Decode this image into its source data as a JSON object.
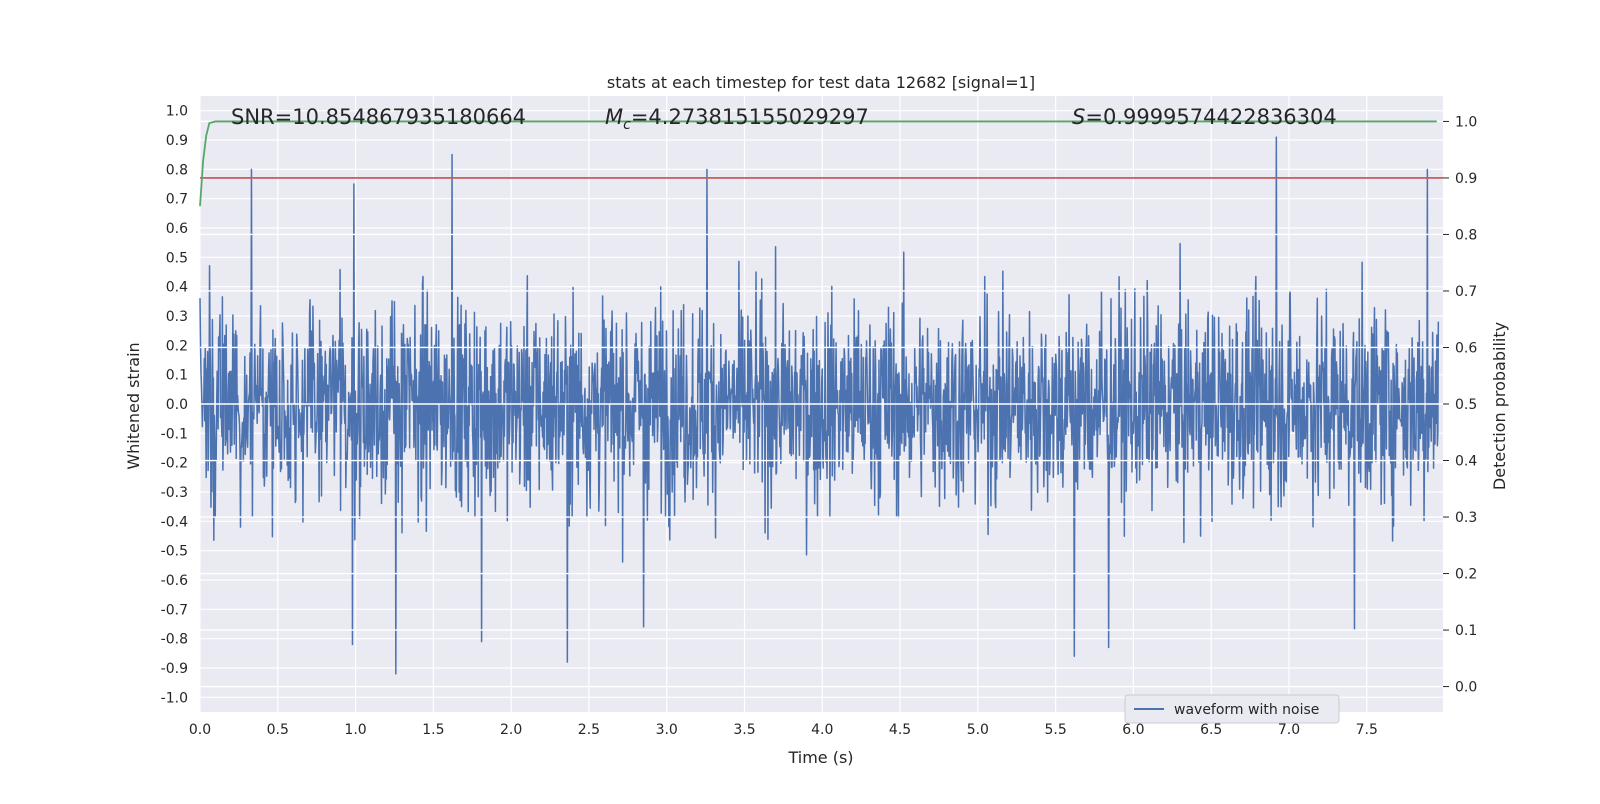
{
  "chart_data": {
    "type": "line",
    "title": "stats at each timestep for test data 12682 [signal=1]",
    "xlabel": "Time (s)",
    "ylabel_left": "Whitened strain",
    "ylabel_right": "Detection probability",
    "xlim": [
      0.0,
      7.99
    ],
    "ylim_left": [
      -1.05,
      1.05
    ],
    "ylim_right": [
      -0.045,
      1.045
    ],
    "x_ticks": [
      "0.0",
      "0.5",
      "1.0",
      "1.5",
      "2.0",
      "2.5",
      "3.0",
      "3.5",
      "4.0",
      "4.5",
      "5.0",
      "5.5",
      "6.0",
      "6.5",
      "7.0",
      "7.5"
    ],
    "y_ticks_left": [
      "1.0",
      "0.9",
      "0.8",
      "0.7",
      "0.6",
      "0.5",
      "0.4",
      "0.3",
      "0.2",
      "0.1",
      "0.0",
      "-0.1",
      "-0.2",
      "-0.3",
      "-0.4",
      "-0.5",
      "-0.6",
      "-0.7",
      "-0.8",
      "-0.9",
      "-1.0"
    ],
    "y_ticks_right": [
      "1.0",
      "0.9",
      "0.8",
      "0.7",
      "0.6",
      "0.5",
      "0.4",
      "0.3",
      "0.2",
      "0.1",
      "0.0"
    ],
    "annotations": {
      "snr": "SNR=10.854867935180664",
      "mc_symbol": "M",
      "mc_sub": "c",
      "mc_value": "=4.273815155029297",
      "s_symbol": "S",
      "s_value": "=0.9999574422836304"
    },
    "legend": {
      "label": "waveform with noise",
      "location": "lower-right"
    },
    "series": [
      {
        "name": "waveform with noise",
        "axis": "left",
        "color": "#4c72b0",
        "style": "dense noise, envelope approx [-0.4, 0.4]",
        "peaks": [
          {
            "x": 0.33,
            "y": 0.8
          },
          {
            "x": 0.99,
            "y": 0.75
          },
          {
            "x": 1.62,
            "y": 0.85
          },
          {
            "x": 3.26,
            "y": 0.8
          },
          {
            "x": 6.92,
            "y": 0.91
          },
          {
            "x": 7.89,
            "y": 0.8
          }
        ],
        "troughs": [
          {
            "x": 0.98,
            "y": -0.82
          },
          {
            "x": 1.26,
            "y": -0.92
          },
          {
            "x": 1.81,
            "y": -0.81
          },
          {
            "x": 2.36,
            "y": -0.88
          },
          {
            "x": 2.85,
            "y": -0.76
          },
          {
            "x": 5.62,
            "y": -0.86
          },
          {
            "x": 5.84,
            "y": -0.83
          },
          {
            "x": 7.42,
            "y": -0.77
          }
        ]
      },
      {
        "name": "detection probability",
        "axis": "right",
        "color": "#55a868",
        "x": [
          0.0,
          0.02,
          0.04,
          0.06,
          0.1,
          0.2,
          7.95
        ],
        "y": [
          0.85,
          0.93,
          0.975,
          0.997,
          1.0,
          1.0,
          1.0
        ]
      },
      {
        "name": "threshold",
        "axis": "right",
        "color": "#c44e52",
        "x": [
          0.0,
          7.99
        ],
        "y": [
          0.9,
          0.9
        ]
      }
    ],
    "grid": true
  },
  "colors": {
    "plot_bg": "#eaeaf2",
    "grid": "#ffffff",
    "waveform": "#4c72b0",
    "probability": "#55a868",
    "threshold": "#c44e52"
  }
}
